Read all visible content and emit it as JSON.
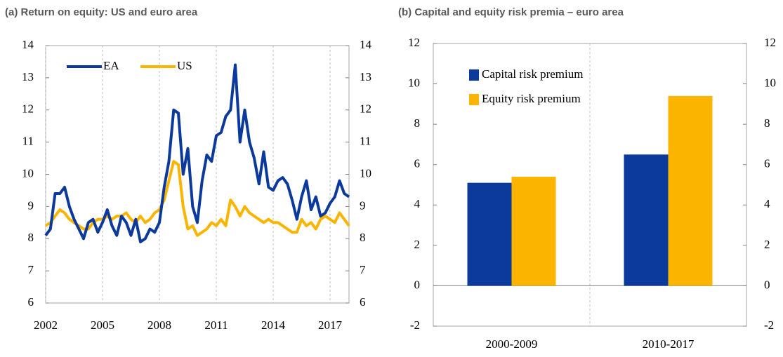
{
  "chart_data": [
    {
      "type": "line",
      "title": "(a) Return on equity: US and euro area",
      "x": [
        2002,
        2002.25,
        2002.5,
        2002.75,
        2003,
        2003.25,
        2003.5,
        2003.75,
        2004,
        2004.25,
        2004.5,
        2004.75,
        2005,
        2005.25,
        2005.5,
        2005.75,
        2006,
        2006.25,
        2006.5,
        2006.75,
        2007,
        2007.25,
        2007.5,
        2007.75,
        2008,
        2008.25,
        2008.5,
        2008.75,
        2009,
        2009.25,
        2009.5,
        2009.75,
        2010,
        2010.25,
        2010.5,
        2010.75,
        2011,
        2011.25,
        2011.5,
        2011.75,
        2012,
        2012.25,
        2012.5,
        2012.75,
        2013,
        2013.25,
        2013.5,
        2013.75,
        2014,
        2014.25,
        2014.5,
        2014.75,
        2015,
        2015.25,
        2015.5,
        2015.75,
        2016,
        2016.25,
        2016.5,
        2016.75,
        2017,
        2017.25,
        2017.5,
        2017.75,
        2018
      ],
      "series": [
        {
          "name": "EA",
          "color": "#0b3a9c",
          "values": [
            8.1,
            8.3,
            9.4,
            9.4,
            9.6,
            9.0,
            8.6,
            8.3,
            8.0,
            8.5,
            8.6,
            8.2,
            8.5,
            8.9,
            8.4,
            8.1,
            8.7,
            8.5,
            8.1,
            8.6,
            7.9,
            8.0,
            8.3,
            8.2,
            8.5,
            9.6,
            10.4,
            12.0,
            11.9,
            10.0,
            10.8,
            9.0,
            8.5,
            9.8,
            10.6,
            10.4,
            11.2,
            11.3,
            11.8,
            12.0,
            13.4,
            11.0,
            12.0,
            11.0,
            10.5,
            9.7,
            10.7,
            9.6,
            9.5,
            9.8,
            9.9,
            9.7,
            9.2,
            8.6,
            9.3,
            9.8,
            8.9,
            9.3,
            8.7,
            8.8,
            9.1,
            9.3,
            9.8,
            9.4,
            9.3
          ]
        },
        {
          "name": "US",
          "color": "#fbb500",
          "values": [
            8.4,
            8.5,
            8.7,
            8.9,
            8.8,
            8.6,
            8.5,
            8.4,
            8.3,
            8.3,
            8.5,
            8.6,
            8.6,
            8.7,
            8.6,
            8.7,
            8.7,
            8.8,
            8.6,
            8.5,
            8.7,
            8.5,
            8.6,
            8.8,
            8.9,
            9.2,
            9.8,
            10.4,
            10.3,
            9.0,
            8.3,
            8.4,
            8.1,
            8.2,
            8.3,
            8.5,
            8.4,
            8.6,
            8.4,
            9.2,
            9.0,
            8.7,
            9.0,
            8.8,
            8.7,
            8.6,
            8.5,
            8.6,
            8.5,
            8.5,
            8.4,
            8.3,
            8.2,
            8.2,
            8.6,
            8.4,
            8.5,
            8.3,
            8.6,
            8.7,
            8.6,
            8.5,
            8.8,
            8.6,
            8.4
          ]
        }
      ],
      "xlim": [
        2002,
        2018
      ],
      "xticks": [
        2002,
        2005,
        2008,
        2011,
        2014,
        2017
      ],
      "ylim": [
        6,
        14
      ],
      "yticks": [
        6,
        7,
        8,
        9,
        10,
        11,
        12,
        13,
        14
      ],
      "y2lim": [
        6,
        14
      ],
      "y2ticks": [
        6,
        7,
        8,
        9,
        10,
        11,
        12,
        13,
        14
      ],
      "grid": "x",
      "legend": "upper left"
    },
    {
      "type": "bar",
      "title": "(b) Capital and equity risk premia – euro area",
      "categories": [
        "2000-2009",
        "2010-2017"
      ],
      "series": [
        {
          "name": "Capital risk premium",
          "color": "#0b3a9c",
          "values": [
            5.1,
            6.5
          ]
        },
        {
          "name": "Equity risk premium",
          "color": "#fbb500",
          "values": [
            5.4,
            9.4
          ]
        }
      ],
      "ylim": [
        -2,
        12
      ],
      "yticks": [
        -2,
        0,
        2,
        4,
        6,
        8,
        10,
        12
      ],
      "y2lim": [
        -2,
        12
      ],
      "y2ticks": [
        -2,
        0,
        2,
        4,
        6,
        8,
        10,
        12
      ],
      "legend": "upper left"
    }
  ]
}
